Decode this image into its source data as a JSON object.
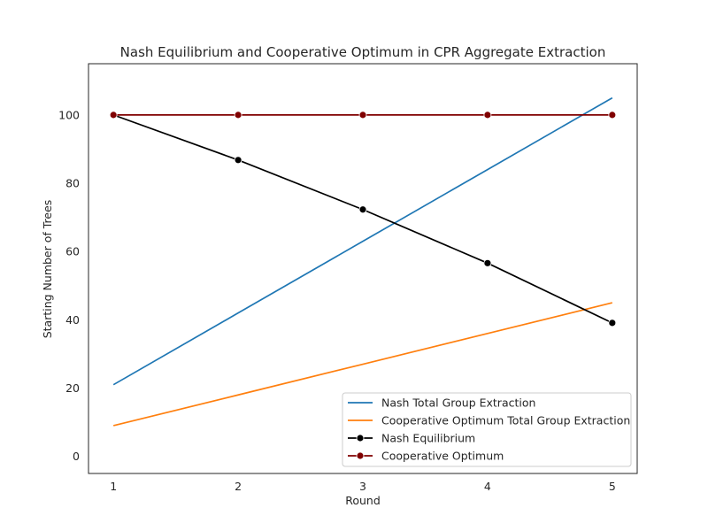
{
  "chart_data": {
    "type": "line",
    "title": "Nash Equilibrium and Cooperative Optimum in CPR Aggregate Extraction",
    "xlabel": "Round",
    "ylabel": "Starting Number of Trees",
    "x": [
      1,
      2,
      3,
      4,
      5
    ],
    "xlim": [
      0.8,
      5.2
    ],
    "ylim": [
      -5,
      115
    ],
    "xticks": [
      "1",
      "2",
      "3",
      "4",
      "5"
    ],
    "yticks": [
      "0",
      "20",
      "40",
      "60",
      "80",
      "100"
    ],
    "grid": false,
    "legend_position": "lower-right",
    "series": [
      {
        "name": "Nash Total Group Extraction",
        "values": [
          21,
          42,
          63,
          84,
          105
        ],
        "color": "#1f77b4",
        "marker": "none"
      },
      {
        "name": "Cooperative Optimum Total Group Extraction",
        "values": [
          9,
          18,
          27,
          36,
          45
        ],
        "color": "#ff7f0e",
        "marker": "none"
      },
      {
        "name": "Nash Equilibrium",
        "values": [
          100,
          86.8,
          72.3,
          56.6,
          39.1
        ],
        "color": "#000000",
        "marker": "circle"
      },
      {
        "name": "Cooperative Optimum",
        "values": [
          100,
          100,
          100,
          100,
          100
        ],
        "color": "#800000",
        "marker": "circle"
      }
    ]
  }
}
